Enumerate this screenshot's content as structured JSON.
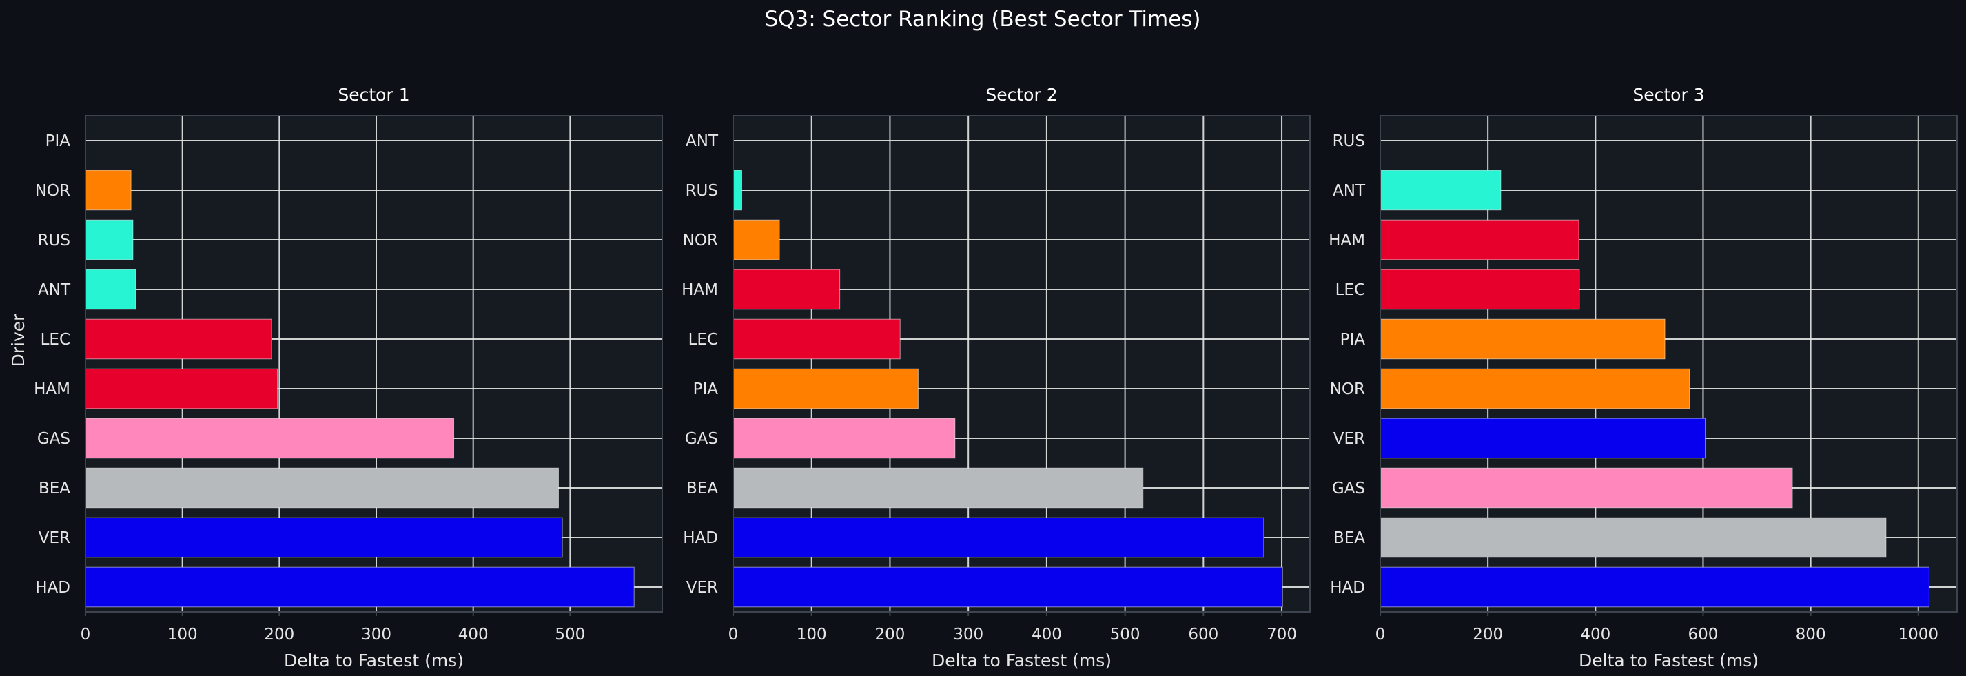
{
  "title": "SQ3: Sector Ranking (Best Sector Times)",
  "ylabel": "Driver",
  "colors": {
    "background": "#0d1117",
    "plot_background": "#161b22",
    "grid": "#e6e6e6",
    "axes_edge": "#3d444d"
  },
  "chart_data": [
    {
      "type": "bar",
      "orientation": "horizontal",
      "title": "Sector 1",
      "xlabel": "Delta to Fastest (ms)",
      "ylabel": "Driver",
      "xlim": [
        0,
        595
      ],
      "xticks": [
        0,
        100,
        200,
        300,
        400,
        500
      ],
      "grid": true,
      "categories": [
        "PIA",
        "NOR",
        "RUS",
        "ANT",
        "LEC",
        "HAM",
        "GAS",
        "BEA",
        "VER",
        "HAD"
      ],
      "values": [
        0,
        47,
        49,
        52,
        192,
        198,
        380,
        488,
        492,
        566
      ],
      "colors": [
        "#FF8000",
        "#FF8000",
        "#27F4D2",
        "#27F4D2",
        "#E8002D",
        "#E8002D",
        "#FF87BC",
        "#B6BABD",
        "#0600EF",
        "#0600EF"
      ]
    },
    {
      "type": "bar",
      "orientation": "horizontal",
      "title": "Sector 2",
      "xlabel": "Delta to Fastest (ms)",
      "ylabel": "",
      "xlim": [
        0,
        736
      ],
      "xticks": [
        0,
        100,
        200,
        300,
        400,
        500,
        600,
        700
      ],
      "grid": true,
      "categories": [
        "ANT",
        "RUS",
        "NOR",
        "HAM",
        "LEC",
        "PIA",
        "GAS",
        "BEA",
        "HAD",
        "VER"
      ],
      "values": [
        0,
        11,
        59,
        136,
        213,
        236,
        283,
        523,
        677,
        701
      ],
      "colors": [
        "#27F4D2",
        "#27F4D2",
        "#FF8000",
        "#E8002D",
        "#E8002D",
        "#FF8000",
        "#FF87BC",
        "#B6BABD",
        "#0600EF",
        "#0600EF"
      ]
    },
    {
      "type": "bar",
      "orientation": "horizontal",
      "title": "Sector 3",
      "xlabel": "Delta to Fastest (ms)",
      "ylabel": "",
      "xlim": [
        0,
        1072
      ],
      "xticks": [
        0,
        200,
        400,
        600,
        800,
        1000
      ],
      "grid": true,
      "categories": [
        "RUS",
        "ANT",
        "HAM",
        "LEC",
        "PIA",
        "NOR",
        "VER",
        "GAS",
        "BEA",
        "HAD"
      ],
      "values": [
        0,
        224,
        369,
        370,
        529,
        575,
        604,
        766,
        940,
        1020
      ],
      "colors": [
        "#27F4D2",
        "#27F4D2",
        "#E8002D",
        "#E8002D",
        "#FF8000",
        "#FF8000",
        "#0600EF",
        "#FF87BC",
        "#B6BABD",
        "#0600EF"
      ]
    }
  ]
}
